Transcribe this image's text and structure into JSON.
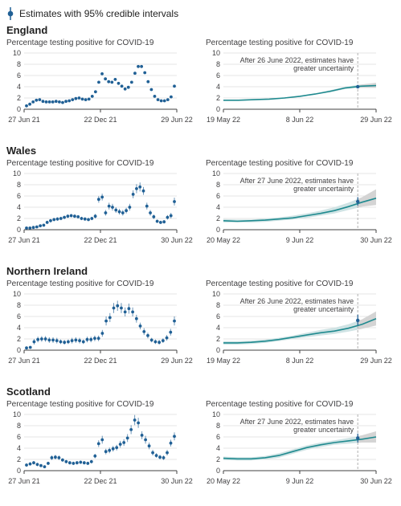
{
  "legend": {
    "label": "Estimates with 95% credible intervals"
  },
  "colors": {
    "point": "#206095",
    "line": "#1f8a8f",
    "band": "#cfe3e4",
    "band_uncertain": "#d4d4d4",
    "grid": "#e6e6e6",
    "axis": "#414042",
    "cutoff": "#b0b0b0"
  },
  "chart_data": [
    {
      "country": "England",
      "left": {
        "type": "scatter",
        "ylabel": "Percentage testing positive for COVID-19",
        "ylim": [
          0,
          10
        ],
        "yticks": [
          0,
          2,
          4,
          6,
          8,
          10
        ],
        "x_ticks": [
          "27 Jun 21",
          "22 Dec 21",
          "29 Jun 22"
        ],
        "values": [
          0.6,
          0.9,
          1.3,
          1.6,
          1.7,
          1.4,
          1.3,
          1.3,
          1.3,
          1.4,
          1.3,
          1.2,
          1.4,
          1.5,
          1.7,
          1.9,
          2.0,
          1.8,
          1.7,
          1.8,
          2.3,
          3.1,
          4.8,
          6.3,
          5.4,
          4.9,
          4.8,
          5.3,
          4.6,
          4.1,
          3.6,
          3.9,
          4.8,
          6.4,
          7.6,
          7.6,
          6.5,
          4.9,
          3.5,
          2.3,
          1.7,
          1.5,
          1.5,
          1.7,
          2.2,
          4.1
        ],
        "error": [
          0.1,
          0.1,
          0.1,
          0.1,
          0.1,
          0.1,
          0.1,
          0.1,
          0.1,
          0.1,
          0.1,
          0.1,
          0.1,
          0.1,
          0.1,
          0.1,
          0.1,
          0.1,
          0.1,
          0.1,
          0.1,
          0.15,
          0.2,
          0.2,
          0.2,
          0.2,
          0.2,
          0.2,
          0.2,
          0.15,
          0.15,
          0.15,
          0.2,
          0.2,
          0.25,
          0.25,
          0.2,
          0.2,
          0.15,
          0.1,
          0.1,
          0.1,
          0.1,
          0.1,
          0.1,
          0.2
        ]
      },
      "right": {
        "type": "line",
        "ylabel": "Percentage testing positive for COVID-19",
        "ylim": [
          0,
          10
        ],
        "yticks": [
          0,
          2,
          4,
          6,
          8,
          10
        ],
        "x_ticks": [
          "19 May 22",
          "8 Jun 22",
          "29 Jun 22"
        ],
        "annotation": [
          "After 26 June 2022, estimates have",
          "greater uncertainty"
        ],
        "values": [
          1.6,
          1.6,
          1.7,
          1.8,
          2.0,
          2.3,
          2.7,
          3.2,
          3.8,
          4.1,
          4.2
        ],
        "lower": [
          1.5,
          1.5,
          1.6,
          1.7,
          1.9,
          2.2,
          2.6,
          3.0,
          3.6,
          3.8,
          3.8
        ],
        "upper": [
          1.7,
          1.7,
          1.8,
          1.9,
          2.1,
          2.4,
          2.8,
          3.4,
          4.0,
          4.4,
          4.7
        ],
        "cutoff_fraction": 0.88,
        "end_point": {
          "value": 4.0,
          "lower": 3.8,
          "upper": 4.3
        }
      }
    },
    {
      "country": "Wales",
      "left": {
        "type": "scatter",
        "ylabel": "Percentage testing positive for COVID-19",
        "ylim": [
          0,
          10
        ],
        "yticks": [
          0,
          2,
          4,
          6,
          8,
          10
        ],
        "x_ticks": [
          "27 Jun 21",
          "22 Dec 21",
          "30 Jun 22"
        ],
        "values": [
          0.3,
          0.3,
          0.4,
          0.5,
          0.7,
          0.8,
          1.3,
          1.6,
          1.8,
          1.9,
          2.0,
          2.2,
          2.4,
          2.5,
          2.4,
          2.3,
          2.0,
          1.9,
          1.8,
          2.0,
          2.4,
          5.4,
          5.8,
          3.0,
          4.2,
          4.0,
          3.5,
          3.2,
          3.0,
          3.4,
          4.0,
          6.3,
          7.3,
          7.6,
          6.9,
          4.2,
          3.0,
          2.3,
          1.5,
          1.3,
          1.4,
          2.2,
          2.5,
          5.0
        ],
        "error": [
          0.1,
          0.1,
          0.1,
          0.1,
          0.2,
          0.2,
          0.3,
          0.3,
          0.3,
          0.3,
          0.3,
          0.3,
          0.3,
          0.3,
          0.3,
          0.3,
          0.3,
          0.3,
          0.3,
          0.3,
          0.4,
          0.6,
          0.6,
          0.5,
          0.6,
          0.6,
          0.5,
          0.5,
          0.5,
          0.5,
          0.6,
          0.7,
          0.8,
          0.8,
          0.7,
          0.6,
          0.5,
          0.4,
          0.3,
          0.3,
          0.3,
          0.4,
          0.5,
          0.7
        ]
      },
      "right": {
        "type": "line",
        "ylabel": "Percentage testing positive for COVID-19",
        "ylim": [
          0,
          10
        ],
        "yticks": [
          0,
          2,
          4,
          6,
          8,
          10
        ],
        "x_ticks": [
          "20 May 22",
          "9 Jun 22",
          "30 Jun 22"
        ],
        "annotation": [
          "After 27 June 2022, estimates have",
          "greater uncertainty"
        ],
        "values": [
          1.6,
          1.5,
          1.6,
          1.7,
          1.9,
          2.1,
          2.5,
          2.9,
          3.4,
          4.1,
          4.9,
          5.6
        ],
        "lower": [
          1.3,
          1.3,
          1.3,
          1.4,
          1.6,
          1.8,
          2.1,
          2.5,
          2.9,
          3.5,
          4.1,
          4.4
        ],
        "upper": [
          1.9,
          1.8,
          1.8,
          2.0,
          2.2,
          2.5,
          2.9,
          3.4,
          4.0,
          4.8,
          5.8,
          7.2
        ],
        "cutoff_fraction": 0.88,
        "end_point": {
          "value": 5.0,
          "lower": 4.3,
          "upper": 5.8
        }
      }
    },
    {
      "country": "Northern Ireland",
      "left": {
        "type": "scatter",
        "ylabel": "Percentage testing positive for COVID-19",
        "ylim": [
          0,
          10
        ],
        "yticks": [
          0,
          2,
          4,
          6,
          8,
          10
        ],
        "x_ticks": [
          "27 Jun 21",
          "22 Dec 21",
          "29 Jun 22"
        ],
        "values": [
          0.4,
          0.5,
          1.5,
          1.9,
          2.0,
          2.0,
          1.8,
          1.8,
          1.7,
          1.5,
          1.4,
          1.5,
          1.7,
          1.8,
          1.7,
          1.5,
          1.9,
          1.9,
          2.1,
          2.1,
          3.0,
          5.2,
          5.8,
          7.5,
          7.9,
          7.5,
          6.8,
          7.4,
          6.8,
          5.6,
          4.3,
          3.3,
          2.6,
          1.8,
          1.5,
          1.4,
          1.7,
          2.2,
          3.2,
          5.2
        ],
        "error": [
          0.2,
          0.2,
          0.5,
          0.5,
          0.5,
          0.5,
          0.5,
          0.5,
          0.5,
          0.4,
          0.4,
          0.4,
          0.5,
          0.5,
          0.5,
          0.4,
          0.5,
          0.5,
          0.5,
          0.5,
          0.6,
          0.8,
          0.8,
          0.9,
          0.9,
          0.9,
          0.8,
          0.9,
          0.8,
          0.7,
          0.6,
          0.6,
          0.5,
          0.4,
          0.4,
          0.4,
          0.4,
          0.5,
          0.6,
          0.8
        ]
      },
      "right": {
        "type": "line",
        "ylabel": "Percentage testing positive for COVID-19",
        "ylim": [
          0,
          10
        ],
        "yticks": [
          0,
          2,
          4,
          6,
          8,
          10
        ],
        "x_ticks": [
          "19 May 22",
          "8 Jun 22",
          "29 Jun 22"
        ],
        "annotation": [
          "After 26 June 2022, estimates have",
          "greater uncertainty"
        ],
        "values": [
          1.3,
          1.3,
          1.4,
          1.6,
          1.9,
          2.3,
          2.7,
          3.1,
          3.4,
          3.9,
          4.6,
          5.6
        ],
        "lower": [
          1.0,
          1.0,
          1.1,
          1.3,
          1.6,
          2.0,
          2.3,
          2.6,
          2.9,
          3.3,
          3.8,
          4.4
        ],
        "upper": [
          1.6,
          1.6,
          1.7,
          1.9,
          2.2,
          2.6,
          3.1,
          3.6,
          4.0,
          4.6,
          5.5,
          6.9
        ],
        "cutoff_fraction": 0.88,
        "end_point": {
          "value": 5.3,
          "lower": 4.4,
          "upper": 6.3
        }
      }
    },
    {
      "country": "Scotland",
      "left": {
        "type": "scatter",
        "ylabel": "Percentage testing positive for COVID-19",
        "ylim": [
          0,
          10
        ],
        "yticks": [
          0,
          2,
          4,
          6,
          8,
          10
        ],
        "x_ticks": [
          "27 Jun 21",
          "22 Dec 21",
          "30 Jun 22"
        ],
        "values": [
          1.0,
          1.2,
          1.4,
          1.1,
          0.9,
          0.7,
          1.3,
          2.3,
          2.4,
          2.3,
          1.9,
          1.6,
          1.4,
          1.3,
          1.4,
          1.5,
          1.4,
          1.3,
          1.6,
          2.6,
          4.8,
          5.5,
          3.4,
          3.6,
          3.9,
          4.1,
          4.7,
          5.0,
          5.8,
          7.3,
          9.0,
          8.5,
          6.3,
          5.5,
          4.4,
          3.2,
          2.7,
          2.4,
          2.3,
          3.2,
          4.9,
          6.1
        ],
        "error": [
          0.3,
          0.3,
          0.3,
          0.3,
          0.2,
          0.2,
          0.3,
          0.4,
          0.4,
          0.4,
          0.3,
          0.3,
          0.3,
          0.3,
          0.3,
          0.3,
          0.3,
          0.3,
          0.3,
          0.4,
          0.6,
          0.7,
          0.5,
          0.5,
          0.5,
          0.5,
          0.6,
          0.6,
          0.7,
          0.8,
          0.9,
          0.9,
          0.7,
          0.7,
          0.6,
          0.5,
          0.4,
          0.4,
          0.4,
          0.5,
          0.6,
          0.7
        ]
      },
      "right": {
        "type": "line",
        "ylabel": "Percentage testing positive for COVID-19",
        "ylim": [
          0,
          10
        ],
        "yticks": [
          0,
          2,
          4,
          6,
          8,
          10
        ],
        "x_ticks": [
          "20 May 22",
          "9 Jun 22",
          "30 Jun 22"
        ],
        "annotation": [
          "After 27 June 2022, estimates have",
          "greater uncertainty"
        ],
        "values": [
          2.2,
          2.1,
          2.1,
          2.3,
          2.7,
          3.4,
          4.1,
          4.6,
          5.0,
          5.3,
          5.6,
          6.0
        ],
        "lower": [
          1.9,
          1.8,
          1.8,
          2.0,
          2.3,
          3.0,
          3.7,
          4.2,
          4.6,
          4.8,
          5.0,
          5.0
        ],
        "upper": [
          2.5,
          2.4,
          2.4,
          2.6,
          3.1,
          3.8,
          4.5,
          5.0,
          5.4,
          5.8,
          6.3,
          7.0
        ],
        "cutoff_fraction": 0.88,
        "end_point": {
          "value": 5.8,
          "lower": 5.0,
          "upper": 6.6
        }
      }
    }
  ]
}
